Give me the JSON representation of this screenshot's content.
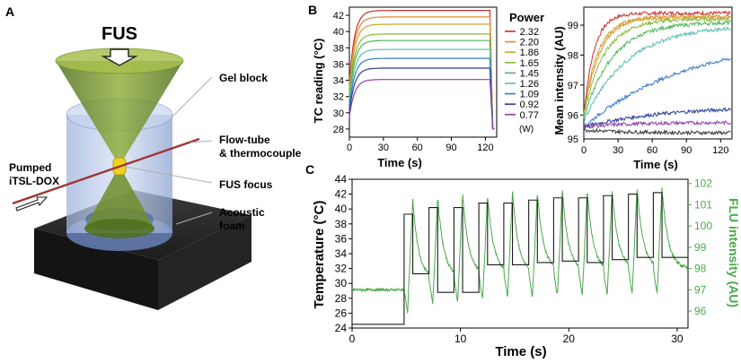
{
  "panel_a": {
    "letter": "A",
    "fus": "FUS",
    "gel_block": "Gel block",
    "flow_tube_1": "Flow-tube",
    "flow_tube_2": "& thermocouple",
    "fus_focus": "FUS focus",
    "acoustic_1": "Acoustic",
    "acoustic_2": "foam",
    "pumped_1": "Pumped",
    "pumped_2": "iTSL-DOX"
  },
  "panel_b_letter": "B",
  "panel_c_letter": "C",
  "colors": {
    "power_series": [
      "#cc2b2b",
      "#e8832c",
      "#c9a72a",
      "#8ab93a",
      "#4fb55a",
      "#58c0b0",
      "#3a78c4",
      "#2b3f9c",
      "#8e3fa3",
      "#333333"
    ],
    "fluorescence": "#4aa84a",
    "temperature": "#1a1a1a"
  },
  "chart_data": [
    {
      "type": "line",
      "xlabel": "Time (s)",
      "ylabel": "TC reading (°C)",
      "xlim": [
        0,
        130
      ],
      "ylim": [
        27,
        43
      ],
      "xticks": [
        0,
        30,
        60,
        90,
        120
      ],
      "yticks": [
        28,
        30,
        32,
        34,
        36,
        38,
        40,
        42
      ],
      "legend_title": "Power",
      "legend_unit": "(W)",
      "legend_position": "right",
      "series": [
        {
          "name": "2.32",
          "start": 33.5,
          "plateau": 42.6,
          "end": 28.0
        },
        {
          "name": "2.20",
          "start": 33.0,
          "plateau": 41.8,
          "end": 28.0
        },
        {
          "name": "1.86",
          "start": 32.5,
          "plateau": 40.9,
          "end": 28.0
        },
        {
          "name": "1.65",
          "start": 32.0,
          "plateau": 39.7,
          "end": 28.0
        },
        {
          "name": "1.45",
          "start": 31.5,
          "plateau": 38.9,
          "end": 28.0
        },
        {
          "name": "1.26",
          "start": 31.0,
          "plateau": 37.8,
          "end": 28.0
        },
        {
          "name": "1.09",
          "start": 30.5,
          "plateau": 36.7,
          "end": 28.0
        },
        {
          "name": "0.92",
          "start": 30.0,
          "plateau": 35.5,
          "end": 28.0
        },
        {
          "name": "0.77",
          "start": 29.5,
          "plateau": 34.1,
          "end": 28.0
        }
      ]
    },
    {
      "type": "line",
      "xlabel": "Time (s)",
      "ylabel": "Mean intensity (AU)",
      "xlim": [
        0,
        130
      ],
      "ylim": [
        95.2,
        99.6
      ],
      "xticks": [
        0,
        30,
        60,
        90,
        120
      ],
      "yticks": [
        95,
        96,
        97,
        98,
        99
      ],
      "series": [
        {
          "start": 96.0,
          "plateau": 99.4,
          "tau": 9
        },
        {
          "start": 96.0,
          "plateau": 99.3,
          "tau": 14
        },
        {
          "start": 96.0,
          "plateau": 99.25,
          "tau": 12
        },
        {
          "start": 96.0,
          "plateau": 99.2,
          "tau": 18
        },
        {
          "start": 95.9,
          "plateau": 99.1,
          "tau": 25
        },
        {
          "start": 95.8,
          "plateau": 99.0,
          "tau": 38
        },
        {
          "start": 95.6,
          "plateau": 98.6,
          "tau": 90
        },
        {
          "start": 95.6,
          "plateau": 96.3,
          "tau": 70
        },
        {
          "start": 95.6,
          "plateau": 95.75,
          "tau": 40
        },
        {
          "start": 95.5,
          "plateau": 95.4,
          "tau": 40
        }
      ]
    },
    {
      "type": "line",
      "xlabel": "Time (s)",
      "ylabel": "Temperature (°C)",
      "y2label": "FLU intensity (AU)",
      "xlim": [
        0,
        31
      ],
      "ylim": [
        24,
        44
      ],
      "y2lim": [
        95.2,
        102.2
      ],
      "xticks": [
        0,
        10,
        20,
        30
      ],
      "yticks": [
        24,
        26,
        28,
        30,
        32,
        34,
        36,
        38,
        40,
        42,
        44
      ],
      "y2ticks": [
        96,
        97,
        98,
        99,
        100,
        101,
        102
      ],
      "baseline_temperature": 24.5,
      "baseline_fluorescence": 97.0,
      "pulse_period_s": 2.3,
      "pulse_on_s": 0.8,
      "pulses": [
        {
          "t_on": 4.8,
          "high": 39.3,
          "low": 31.3,
          "flu_peak": 101.2,
          "flu_low": 97.5
        },
        {
          "t_on": 7.1,
          "high": 40.2,
          "low": 28.8,
          "flu_peak": 101.4,
          "flu_low": 97.6
        },
        {
          "t_on": 9.4,
          "high": 40.2,
          "low": 28.8,
          "flu_peak": 101.5,
          "flu_low": 97.7
        },
        {
          "t_on": 11.7,
          "high": 40.8,
          "low": 32.5,
          "flu_peak": 101.5,
          "flu_low": 97.8
        },
        {
          "t_on": 14.0,
          "high": 40.8,
          "low": 32.5,
          "flu_peak": 101.6,
          "flu_low": 97.8
        },
        {
          "t_on": 16.3,
          "high": 41.2,
          "low": 32.8,
          "flu_peak": 101.6,
          "flu_low": 97.9
        },
        {
          "t_on": 18.6,
          "high": 41.5,
          "low": 33.0,
          "flu_peak": 101.7,
          "flu_low": 97.9
        },
        {
          "t_on": 20.9,
          "high": 41.5,
          "low": 32.8,
          "flu_peak": 101.7,
          "flu_low": 97.9
        },
        {
          "t_on": 23.2,
          "high": 41.8,
          "low": 33.2,
          "flu_peak": 101.7,
          "flu_low": 98.0
        },
        {
          "t_on": 25.5,
          "high": 42.0,
          "low": 33.5,
          "flu_peak": 101.8,
          "flu_low": 98.0
        },
        {
          "t_on": 27.8,
          "high": 42.2,
          "low": 33.5,
          "flu_peak": 101.8,
          "flu_low": 98.0
        }
      ]
    }
  ]
}
